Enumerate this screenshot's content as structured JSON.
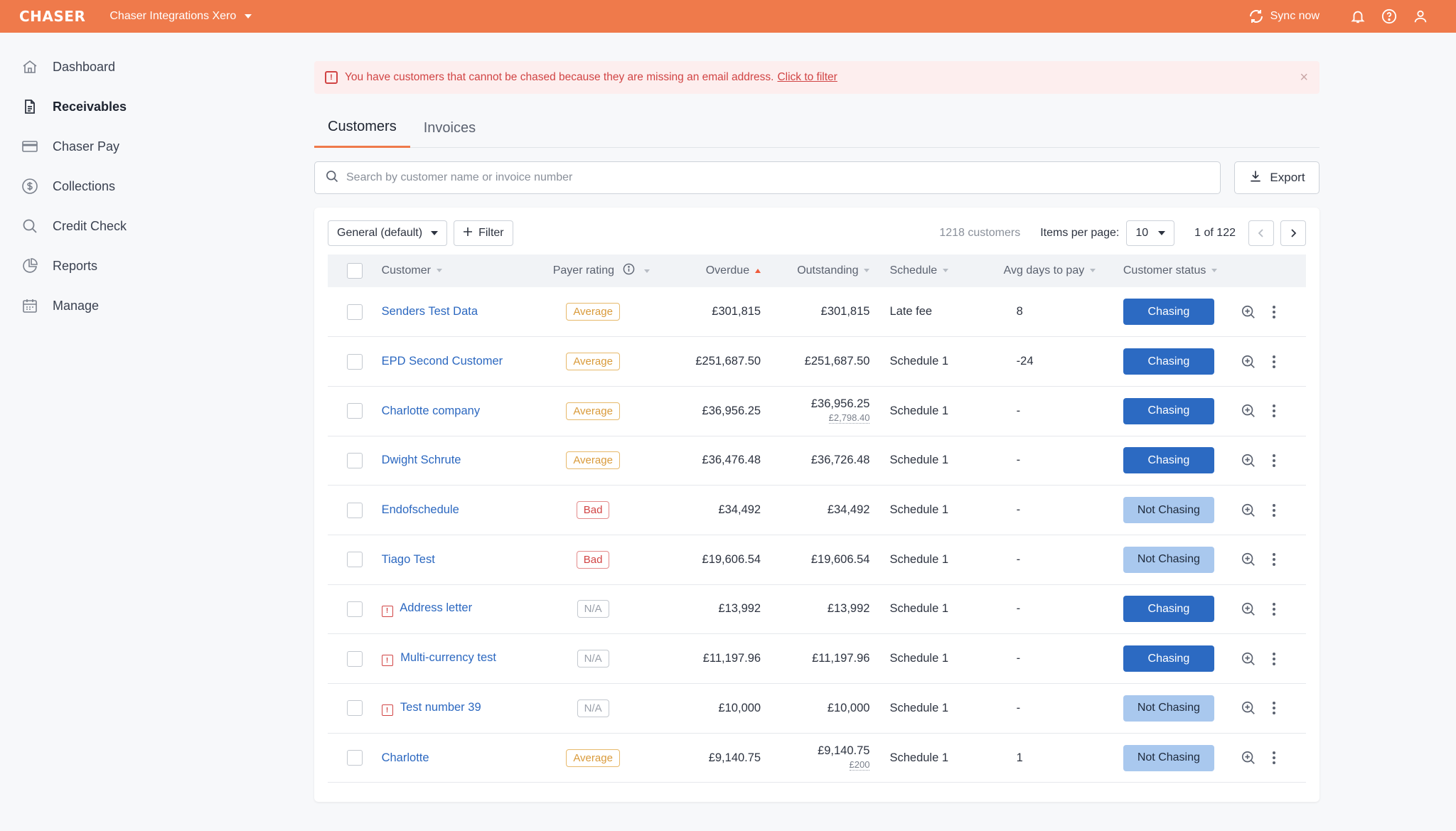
{
  "header": {
    "logo": "CHASER",
    "org_name": "Chaser Integrations Xero",
    "sync_label": "Sync now"
  },
  "sidebar": {
    "items": [
      {
        "label": "Dashboard",
        "icon": "home-icon"
      },
      {
        "label": "Receivables",
        "icon": "document-icon",
        "active": true
      },
      {
        "label": "Chaser Pay",
        "icon": "card-icon"
      },
      {
        "label": "Collections",
        "icon": "dollar-circle-icon"
      },
      {
        "label": "Credit Check",
        "icon": "search-icon"
      },
      {
        "label": "Reports",
        "icon": "pie-chart-icon"
      },
      {
        "label": "Manage",
        "icon": "calendar-icon"
      }
    ]
  },
  "alert": {
    "message": "You have customers that cannot be chased because they are missing an email address.",
    "link": "Click to filter"
  },
  "tabs": [
    {
      "label": "Customers",
      "active": true
    },
    {
      "label": "Invoices",
      "active": false
    }
  ],
  "search": {
    "placeholder": "Search by customer name or invoice number",
    "value": ""
  },
  "export_label": "Export",
  "toolbar": {
    "view": "General (default)",
    "filter_label": "Filter",
    "count": "1218 customers",
    "items_per_page_label": "Items per page:",
    "items_per_page": "10",
    "page_info": "1 of 122"
  },
  "columns": {
    "customer": "Customer",
    "payer_rating": "Payer rating",
    "overdue": "Overdue",
    "outstanding": "Outstanding",
    "schedule": "Schedule",
    "avg_days": "Avg days to pay",
    "status": "Customer status"
  },
  "rows": [
    {
      "customer": "Senders Test Data",
      "warn": false,
      "rating": "Average",
      "overdue": "£301,815",
      "outstanding": "£301,815",
      "sub": "",
      "schedule": "Late fee",
      "avg_days": "8",
      "status": "Chasing"
    },
    {
      "customer": "EPD Second Customer",
      "warn": false,
      "rating": "Average",
      "overdue": "£251,687.50",
      "outstanding": "£251,687.50",
      "sub": "",
      "schedule": "Schedule 1",
      "avg_days": "-24",
      "status": "Chasing"
    },
    {
      "customer": "Charlotte company",
      "warn": false,
      "rating": "Average",
      "overdue": "£36,956.25",
      "outstanding": "£36,956.25",
      "sub": "£2,798.40",
      "schedule": "Schedule 1",
      "avg_days": "-",
      "status": "Chasing"
    },
    {
      "customer": "Dwight Schrute",
      "warn": false,
      "rating": "Average",
      "overdue": "£36,476.48",
      "outstanding": "£36,726.48",
      "sub": "",
      "schedule": "Schedule 1",
      "avg_days": "-",
      "status": "Chasing"
    },
    {
      "customer": "Endofschedule",
      "warn": false,
      "rating": "Bad",
      "overdue": "£34,492",
      "outstanding": "£34,492",
      "sub": "",
      "schedule": "Schedule 1",
      "avg_days": "-",
      "status": "Not Chasing"
    },
    {
      "customer": "Tiago Test",
      "warn": false,
      "rating": "Bad",
      "overdue": "£19,606.54",
      "outstanding": "£19,606.54",
      "sub": "",
      "schedule": "Schedule 1",
      "avg_days": "-",
      "status": "Not Chasing"
    },
    {
      "customer": "Address letter",
      "warn": true,
      "rating": "N/A",
      "overdue": "£13,992",
      "outstanding": "£13,992",
      "sub": "",
      "schedule": "Schedule 1",
      "avg_days": "-",
      "status": "Chasing"
    },
    {
      "customer": "Multi-currency test",
      "warn": true,
      "rating": "N/A",
      "overdue": "£11,197.96",
      "outstanding": "£11,197.96",
      "sub": "",
      "schedule": "Schedule 1",
      "avg_days": "-",
      "status": "Chasing"
    },
    {
      "customer": "Test number 39",
      "warn": true,
      "rating": "N/A",
      "overdue": "£10,000",
      "outstanding": "£10,000",
      "sub": "",
      "schedule": "Schedule 1",
      "avg_days": "-",
      "status": "Not Chasing"
    },
    {
      "customer": "Charlotte",
      "warn": false,
      "rating": "Average",
      "overdue": "£9,140.75",
      "outstanding": "£9,140.75",
      "sub": "£200",
      "schedule": "Schedule 1",
      "avg_days": "1",
      "status": "Not Chasing"
    }
  ],
  "colors": {
    "brand": "#ef7a4b",
    "chasing": "#2c6ac2",
    "not_chasing": "#a9c8ee",
    "link": "#2c68c0",
    "alert": "#d14444"
  }
}
